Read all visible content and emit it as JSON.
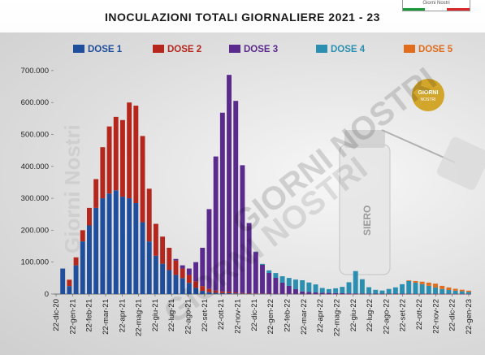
{
  "corner_logo_text": "Giorni Nostri",
  "chart_data": {
    "type": "bar",
    "stacked": true,
    "title": "INOCULAZIONI TOTALI GIORNALIERE 2021 - 23",
    "xlabel": "",
    "ylabel": "",
    "ylim": [
      0,
      720000
    ],
    "yticks": [
      0,
      100000,
      200000,
      300000,
      400000,
      500000,
      600000,
      700000
    ],
    "ytick_labels": [
      "0",
      "100.000",
      "200.000",
      "300.000",
      "400.000",
      "500.000",
      "600.000",
      "700.000"
    ],
    "x_range": [
      "2020-12-22",
      "2023-01-22"
    ],
    "xtick_labels": [
      "22-dic-20",
      "22-gen-21",
      "22-feb-21",
      "22-mar-21",
      "22-apr-21",
      "22-mag-21",
      "22-giu-21",
      "22-lug-21",
      "22-ago-21",
      "22-set-21",
      "22-ott-21",
      "22-nov-21",
      "22-dic-21",
      "22-gen-22",
      "22-feb-22",
      "22-mar-22",
      "22-apr-22",
      "22-mag-22",
      "22-giu-22",
      "22-lug-22",
      "22-ago-22",
      "22-set-22",
      "22-ott-22",
      "22-nov-22",
      "22-dic-22",
      "22-gen-23"
    ],
    "legend_position": "top",
    "grid": false,
    "series": [
      {
        "name": "DOSE 1",
        "color": "#1f4e9c",
        "values": [
          [
            0,
            0
          ],
          [
            1,
            80000
          ],
          [
            2,
            25000
          ],
          [
            3,
            90000
          ],
          [
            4,
            165000
          ],
          [
            5,
            215000
          ],
          [
            6,
            270000
          ],
          [
            7,
            300000
          ],
          [
            8,
            315000
          ],
          [
            9,
            325000
          ],
          [
            10,
            305000
          ],
          [
            11,
            300000
          ],
          [
            12,
            285000
          ],
          [
            13,
            225000
          ],
          [
            14,
            165000
          ],
          [
            15,
            120000
          ],
          [
            16,
            95000
          ],
          [
            17,
            75000
          ],
          [
            18,
            60000
          ],
          [
            19,
            50000
          ],
          [
            20,
            35000
          ],
          [
            21,
            20000
          ],
          [
            22,
            10000
          ],
          [
            23,
            6000
          ],
          [
            24,
            4000
          ],
          [
            25,
            3000
          ],
          [
            26,
            2500
          ],
          [
            27,
            2000
          ],
          [
            28,
            1500
          ],
          [
            29,
            1000
          ],
          [
            30,
            800
          ],
          [
            31,
            600
          ],
          [
            32,
            400
          ],
          [
            33,
            300
          ],
          [
            34,
            250
          ],
          [
            35,
            200
          ],
          [
            36,
            150
          ],
          [
            37,
            100
          ],
          [
            38,
            100
          ],
          [
            39,
            80
          ],
          [
            40,
            60
          ],
          [
            41,
            50
          ],
          [
            42,
            40
          ],
          [
            43,
            30
          ],
          [
            44,
            30
          ],
          [
            45,
            20
          ],
          [
            46,
            20
          ],
          [
            47,
            20
          ],
          [
            48,
            20
          ],
          [
            49,
            20
          ],
          [
            50,
            20
          ],
          [
            51,
            20
          ],
          [
            52,
            20
          ],
          [
            53,
            20
          ],
          [
            54,
            20
          ],
          [
            55,
            20
          ],
          [
            56,
            20
          ],
          [
            57,
            20
          ],
          [
            58,
            20
          ],
          [
            59,
            20
          ],
          [
            60,
            20
          ],
          [
            61,
            20
          ],
          [
            62,
            20
          ]
        ]
      },
      {
        "name": "DOSE 2",
        "color": "#b5271c",
        "values": [
          [
            0,
            0
          ],
          [
            1,
            0
          ],
          [
            2,
            20000
          ],
          [
            3,
            25000
          ],
          [
            4,
            35000
          ],
          [
            5,
            55000
          ],
          [
            6,
            90000
          ],
          [
            7,
            160000
          ],
          [
            8,
            210000
          ],
          [
            9,
            230000
          ],
          [
            10,
            240000
          ],
          [
            11,
            300000
          ],
          [
            12,
            305000
          ],
          [
            13,
            270000
          ],
          [
            14,
            165000
          ],
          [
            15,
            100000
          ],
          [
            16,
            85000
          ],
          [
            17,
            70000
          ],
          [
            18,
            45000
          ],
          [
            19,
            30000
          ],
          [
            20,
            25000
          ],
          [
            21,
            20000
          ],
          [
            22,
            15000
          ],
          [
            23,
            10000
          ],
          [
            24,
            7000
          ],
          [
            25,
            5000
          ],
          [
            26,
            4000
          ],
          [
            27,
            3000
          ],
          [
            28,
            2000
          ],
          [
            29,
            1500
          ],
          [
            30,
            1200
          ],
          [
            31,
            1000
          ],
          [
            32,
            800
          ],
          [
            33,
            600
          ],
          [
            34,
            500
          ],
          [
            35,
            400
          ],
          [
            36,
            300
          ],
          [
            37,
            200
          ],
          [
            38,
            150
          ],
          [
            39,
            100
          ],
          [
            40,
            80
          ],
          [
            41,
            60
          ],
          [
            42,
            50
          ],
          [
            43,
            40
          ],
          [
            44,
            30
          ],
          [
            45,
            30
          ],
          [
            46,
            20
          ],
          [
            47,
            20
          ],
          [
            48,
            20
          ],
          [
            49,
            20
          ],
          [
            50,
            20
          ],
          [
            51,
            20
          ],
          [
            52,
            20
          ],
          [
            53,
            20
          ],
          [
            54,
            20
          ],
          [
            55,
            20
          ],
          [
            56,
            20
          ],
          [
            57,
            20
          ],
          [
            58,
            20
          ],
          [
            59,
            20
          ],
          [
            60,
            20
          ],
          [
            61,
            20
          ],
          [
            62,
            20
          ]
        ]
      },
      {
        "name": "DOSE 3",
        "color": "#5a2a8c",
        "values": [
          [
            0,
            0
          ],
          [
            1,
            0
          ],
          [
            2,
            0
          ],
          [
            3,
            0
          ],
          [
            4,
            0
          ],
          [
            5,
            0
          ],
          [
            6,
            0
          ],
          [
            7,
            0
          ],
          [
            8,
            0
          ],
          [
            9,
            0
          ],
          [
            10,
            0
          ],
          [
            11,
            0
          ],
          [
            12,
            0
          ],
          [
            13,
            0
          ],
          [
            14,
            0
          ],
          [
            15,
            0
          ],
          [
            16,
            0
          ],
          [
            17,
            0
          ],
          [
            18,
            5000
          ],
          [
            19,
            10000
          ],
          [
            20,
            20000
          ],
          [
            21,
            60000
          ],
          [
            22,
            120000
          ],
          [
            23,
            250000
          ],
          [
            24,
            420000
          ],
          [
            25,
            560000
          ],
          [
            26,
            680000
          ],
          [
            27,
            600000
          ],
          [
            28,
            400000
          ],
          [
            29,
            220000
          ],
          [
            30,
            130000
          ],
          [
            31,
            90000
          ],
          [
            32,
            65000
          ],
          [
            33,
            50000
          ],
          [
            34,
            35000
          ],
          [
            35,
            25000
          ],
          [
            36,
            15000
          ],
          [
            37,
            8000
          ],
          [
            38,
            6000
          ],
          [
            39,
            5000
          ],
          [
            40,
            4000
          ],
          [
            41,
            3500
          ],
          [
            42,
            3000
          ],
          [
            43,
            2500
          ],
          [
            44,
            2000
          ],
          [
            45,
            2000
          ],
          [
            46,
            1500
          ],
          [
            47,
            1500
          ],
          [
            48,
            1200
          ],
          [
            49,
            1000
          ],
          [
            50,
            1000
          ],
          [
            51,
            1000
          ],
          [
            52,
            900
          ],
          [
            53,
            900
          ],
          [
            54,
            800
          ],
          [
            55,
            800
          ],
          [
            56,
            800
          ],
          [
            57,
            700
          ],
          [
            58,
            700
          ],
          [
            59,
            700
          ],
          [
            60,
            600
          ],
          [
            61,
            600
          ],
          [
            62,
            600
          ]
        ]
      },
      {
        "name": "DOSE 4",
        "color": "#2a8fb0",
        "values": [
          [
            0,
            0
          ],
          [
            1,
            0
          ],
          [
            2,
            0
          ],
          [
            3,
            0
          ],
          [
            4,
            0
          ],
          [
            5,
            0
          ],
          [
            6,
            0
          ],
          [
            7,
            0
          ],
          [
            8,
            0
          ],
          [
            9,
            0
          ],
          [
            10,
            0
          ],
          [
            11,
            0
          ],
          [
            12,
            0
          ],
          [
            13,
            0
          ],
          [
            14,
            0
          ],
          [
            15,
            0
          ],
          [
            16,
            0
          ],
          [
            17,
            0
          ],
          [
            18,
            0
          ],
          [
            19,
            0
          ],
          [
            20,
            0
          ],
          [
            21,
            0
          ],
          [
            22,
            0
          ],
          [
            23,
            0
          ],
          [
            24,
            0
          ],
          [
            25,
            0
          ],
          [
            26,
            0
          ],
          [
            27,
            0
          ],
          [
            28,
            0
          ],
          [
            29,
            0
          ],
          [
            30,
            1000
          ],
          [
            31,
            3000
          ],
          [
            32,
            8000
          ],
          [
            33,
            15000
          ],
          [
            34,
            20000
          ],
          [
            35,
            25000
          ],
          [
            36,
            30000
          ],
          [
            37,
            35000
          ],
          [
            38,
            30000
          ],
          [
            39,
            25000
          ],
          [
            40,
            15000
          ],
          [
            41,
            12000
          ],
          [
            42,
            15000
          ],
          [
            43,
            20000
          ],
          [
            44,
            35000
          ],
          [
            45,
            70000
          ],
          [
            46,
            45000
          ],
          [
            47,
            20000
          ],
          [
            48,
            12000
          ],
          [
            49,
            10000
          ],
          [
            50,
            15000
          ],
          [
            51,
            20000
          ],
          [
            52,
            30000
          ],
          [
            53,
            40000
          ],
          [
            54,
            35000
          ],
          [
            55,
            30000
          ],
          [
            56,
            25000
          ],
          [
            57,
            20000
          ],
          [
            58,
            15000
          ],
          [
            59,
            12000
          ],
          [
            60,
            10000
          ],
          [
            61,
            8000
          ],
          [
            62,
            6000
          ]
        ]
      },
      {
        "name": "DOSE 5",
        "color": "#e06c1c",
        "values": [
          [
            0,
            0
          ],
          [
            1,
            0
          ],
          [
            2,
            0
          ],
          [
            3,
            0
          ],
          [
            4,
            0
          ],
          [
            5,
            0
          ],
          [
            6,
            0
          ],
          [
            7,
            0
          ],
          [
            8,
            0
          ],
          [
            9,
            0
          ],
          [
            10,
            0
          ],
          [
            11,
            0
          ],
          [
            12,
            0
          ],
          [
            13,
            0
          ],
          [
            14,
            0
          ],
          [
            15,
            0
          ],
          [
            16,
            0
          ],
          [
            17,
            0
          ],
          [
            18,
            0
          ],
          [
            19,
            0
          ],
          [
            20,
            0
          ],
          [
            21,
            0
          ],
          [
            22,
            0
          ],
          [
            23,
            0
          ],
          [
            24,
            0
          ],
          [
            25,
            0
          ],
          [
            26,
            0
          ],
          [
            27,
            0
          ],
          [
            28,
            0
          ],
          [
            29,
            0
          ],
          [
            30,
            0
          ],
          [
            31,
            0
          ],
          [
            32,
            0
          ],
          [
            33,
            0
          ],
          [
            34,
            0
          ],
          [
            35,
            0
          ],
          [
            36,
            0
          ],
          [
            37,
            0
          ],
          [
            38,
            0
          ],
          [
            39,
            0
          ],
          [
            40,
            0
          ],
          [
            41,
            0
          ],
          [
            42,
            0
          ],
          [
            43,
            0
          ],
          [
            44,
            0
          ],
          [
            45,
            0
          ],
          [
            46,
            0
          ],
          [
            47,
            0
          ],
          [
            48,
            0
          ],
          [
            49,
            0
          ],
          [
            50,
            0
          ],
          [
            51,
            0
          ],
          [
            52,
            0
          ],
          [
            53,
            2000
          ],
          [
            54,
            5000
          ],
          [
            55,
            8000
          ],
          [
            56,
            10000
          ],
          [
            57,
            12000
          ],
          [
            58,
            10000
          ],
          [
            59,
            8000
          ],
          [
            60,
            6000
          ],
          [
            61,
            5000
          ],
          [
            62,
            4000
          ]
        ]
      }
    ],
    "watermarks": [
      "Giorni Nostri",
      "GIORNI NOSTRI",
      "SIERO",
      "GIORNI NOSTRI"
    ]
  }
}
